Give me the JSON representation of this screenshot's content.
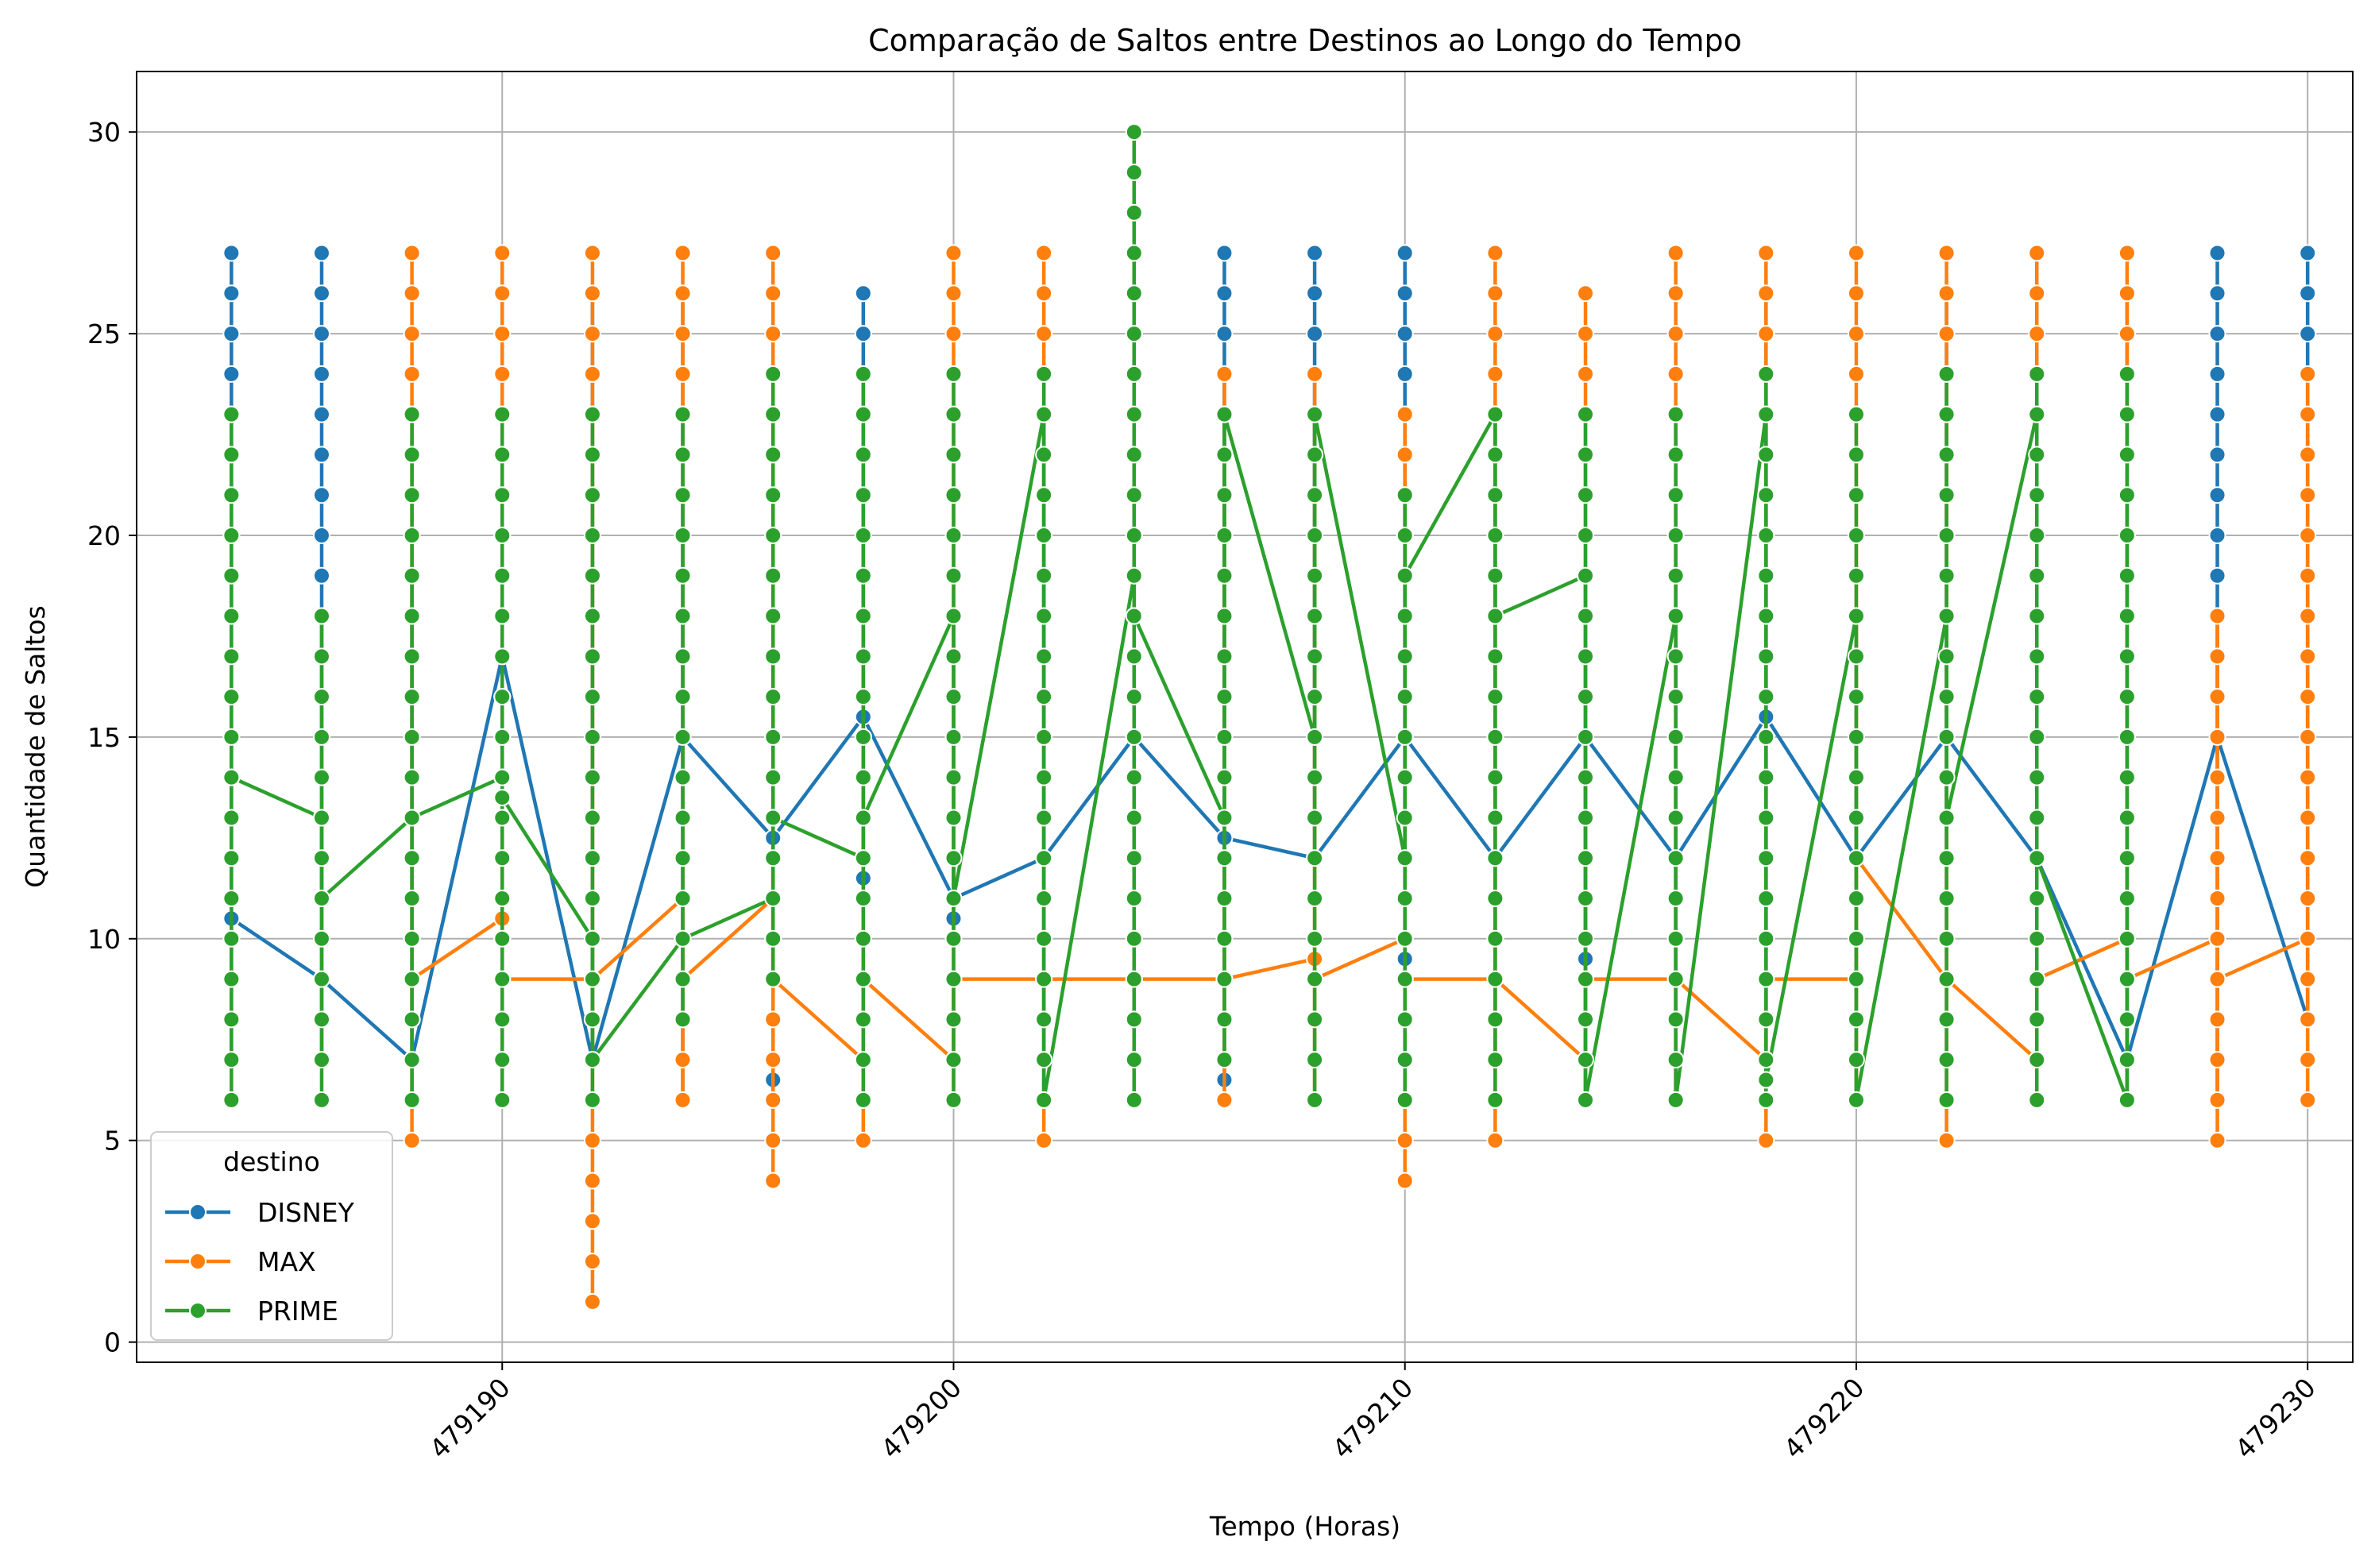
{
  "chart_data": {
    "type": "line",
    "title": "Comparação de Saltos entre Destinos ao Longo do Tempo",
    "xlabel": "Tempo (Horas)",
    "ylabel": "Quantidade de Saltos",
    "xlim": [
      479181.9,
      479231.0
    ],
    "ylim": [
      -0.5,
      31.5
    ],
    "xticks": [
      479190,
      479200,
      479210,
      479220,
      479230
    ],
    "yticks": [
      0,
      5,
      10,
      15,
      20,
      25,
      30
    ],
    "xtick_labels": [
      "479190",
      "479200",
      "479210",
      "479220",
      "479230"
    ],
    "ytick_labels": [
      "0",
      "5",
      "10",
      "15",
      "20",
      "25",
      "30"
    ],
    "grid": true,
    "legend": {
      "title": "destino",
      "placement": "lower-left"
    },
    "series": [
      {
        "name": "DISNEY",
        "color": "#1f77b4",
        "mean_line": [
          [
            479184,
            10.5
          ],
          [
            479186,
            9
          ],
          [
            479188,
            7
          ],
          [
            479190,
            17
          ],
          [
            479192,
            7
          ],
          [
            479194,
            15
          ],
          [
            479196,
            12.5
          ],
          [
            479198,
            15.5
          ],
          [
            479200,
            11
          ],
          [
            479202,
            12
          ],
          [
            479204,
            15
          ],
          [
            479206,
            12.5
          ],
          [
            479208,
            12
          ],
          [
            479210,
            15
          ],
          [
            479212,
            12
          ],
          [
            479214,
            15
          ],
          [
            479216,
            12
          ],
          [
            479218,
            15.5
          ],
          [
            479220,
            12
          ],
          [
            479222,
            15
          ],
          [
            479224,
            12
          ],
          [
            479226,
            7
          ],
          [
            479228,
            15
          ],
          [
            479230,
            8
          ]
        ],
        "range": [
          [
            479184,
            7,
            27
          ],
          [
            479186,
            7,
            27
          ],
          [
            479188,
            7,
            19
          ],
          [
            479190,
            7,
            17
          ],
          [
            479192,
            7,
            26
          ],
          [
            479194,
            6,
            26
          ],
          [
            479196,
            6.5,
            17
          ],
          [
            479198,
            11.5,
            26
          ],
          [
            479200,
            10.5,
            12
          ],
          [
            479202,
            10,
            19
          ],
          [
            479204,
            12,
            26
          ],
          [
            479206,
            6.5,
            27
          ],
          [
            479208,
            12,
            27
          ],
          [
            479210,
            9.5,
            27
          ],
          [
            479212,
            7,
            19
          ],
          [
            479214,
            9.5,
            15
          ],
          [
            479216,
            8,
            15
          ],
          [
            479218,
            8,
            26
          ],
          [
            479220,
            12,
            15
          ],
          [
            479222,
            12,
            26
          ],
          [
            479224,
            12,
            19
          ],
          [
            479226,
            7,
            26
          ],
          [
            479228,
            6,
            27
          ],
          [
            479230,
            8,
            27
          ]
        ]
      },
      {
        "name": "MAX",
        "color": "#ff7f0e",
        "mean_line": [
          [
            479188,
            9
          ],
          [
            479190,
            10.5
          ],
          [
            479190,
            9
          ],
          [
            479192,
            9
          ],
          [
            479194,
            11
          ],
          [
            479194,
            9
          ],
          [
            479196,
            11
          ],
          [
            479196,
            9
          ],
          [
            479198,
            7
          ],
          [
            479198,
            9
          ],
          [
            479200,
            7
          ],
          [
            479200,
            9
          ],
          [
            479202,
            9
          ],
          [
            479204,
            9
          ],
          [
            479206,
            9
          ],
          [
            479208,
            9.5
          ],
          [
            479208,
            9
          ],
          [
            479210,
            10
          ],
          [
            479210,
            9
          ],
          [
            479212,
            9
          ],
          [
            479214,
            7
          ],
          [
            479214,
            9
          ],
          [
            479216,
            9
          ],
          [
            479218,
            7
          ],
          [
            479218,
            9
          ],
          [
            479220,
            9
          ],
          [
            479220,
            12
          ],
          [
            479222,
            9
          ],
          [
            479224,
            7
          ],
          [
            479224,
            9
          ],
          [
            479226,
            10
          ],
          [
            479226,
            9
          ],
          [
            479228,
            10
          ],
          [
            479228,
            9
          ],
          [
            479230,
            10
          ]
        ],
        "range": [
          [
            479188,
            5,
            27
          ],
          [
            479190,
            6,
            27
          ],
          [
            479192,
            1,
            27
          ],
          [
            479194,
            6,
            27
          ],
          [
            479196,
            4,
            27
          ],
          [
            479198,
            5,
            18
          ],
          [
            479200,
            6,
            27
          ],
          [
            479202,
            5,
            27
          ],
          [
            479204,
            6,
            27
          ],
          [
            479206,
            6,
            24
          ],
          [
            479208,
            6,
            24
          ],
          [
            479210,
            4,
            23
          ],
          [
            479212,
            5,
            27
          ],
          [
            479214,
            6,
            26
          ],
          [
            479216,
            6,
            27
          ],
          [
            479218,
            5,
            27
          ],
          [
            479220,
            6,
            27
          ],
          [
            479222,
            5,
            27
          ],
          [
            479224,
            6,
            27
          ],
          [
            479226,
            6,
            27
          ],
          [
            479228,
            5,
            18
          ],
          [
            479230,
            6,
            24
          ]
        ]
      },
      {
        "name": "PRIME",
        "color": "#2ca02c",
        "mean_line": [
          [
            479184,
            14
          ],
          [
            479186,
            13
          ],
          [
            479186,
            11
          ],
          [
            479188,
            13
          ],
          [
            479190,
            14
          ],
          [
            479190,
            13.5
          ],
          [
            479192,
            10
          ],
          [
            479192,
            7
          ],
          [
            479194,
            10
          ],
          [
            479196,
            11
          ],
          [
            479196,
            13
          ],
          [
            479198,
            12
          ],
          [
            479198,
            13
          ],
          [
            479200,
            18
          ],
          [
            479200,
            11
          ],
          [
            479202,
            23
          ],
          [
            479202,
            6
          ],
          [
            479204,
            19
          ],
          [
            479204,
            18
          ],
          [
            479206,
            13
          ],
          [
            479206,
            23
          ],
          [
            479208,
            15
          ],
          [
            479208,
            23
          ],
          [
            479210,
            12
          ],
          [
            479210,
            21
          ],
          [
            479210,
            19
          ],
          [
            479212,
            23
          ],
          [
            479212,
            18
          ],
          [
            479214,
            19
          ],
          [
            479214,
            6
          ],
          [
            479216,
            18
          ],
          [
            479216,
            6
          ],
          [
            479218,
            23
          ],
          [
            479218,
            6.5
          ],
          [
            479220,
            18
          ],
          [
            479220,
            6
          ],
          [
            479222,
            18
          ],
          [
            479222,
            13
          ],
          [
            479224,
            23
          ],
          [
            479224,
            12
          ],
          [
            479226,
            6
          ],
          [
            479226,
            9
          ]
        ],
        "range": [
          [
            479184,
            6,
            23
          ],
          [
            479186,
            6,
            18
          ],
          [
            479188,
            6,
            23
          ],
          [
            479190,
            6,
            23
          ],
          [
            479192,
            6,
            23
          ],
          [
            479194,
            8,
            23
          ],
          [
            479196,
            9,
            24
          ],
          [
            479198,
            6,
            24
          ],
          [
            479200,
            6,
            24
          ],
          [
            479202,
            6,
            24
          ],
          [
            479204,
            6,
            30
          ],
          [
            479206,
            7,
            23
          ],
          [
            479208,
            6,
            23
          ],
          [
            479210,
            6,
            21
          ],
          [
            479212,
            6,
            23
          ],
          [
            479214,
            6,
            23
          ],
          [
            479216,
            6,
            23
          ],
          [
            479218,
            6,
            24
          ],
          [
            479220,
            6,
            23
          ],
          [
            479222,
            6,
            24
          ],
          [
            479224,
            6,
            24
          ],
          [
            479226,
            6,
            24
          ]
        ]
      }
    ]
  }
}
